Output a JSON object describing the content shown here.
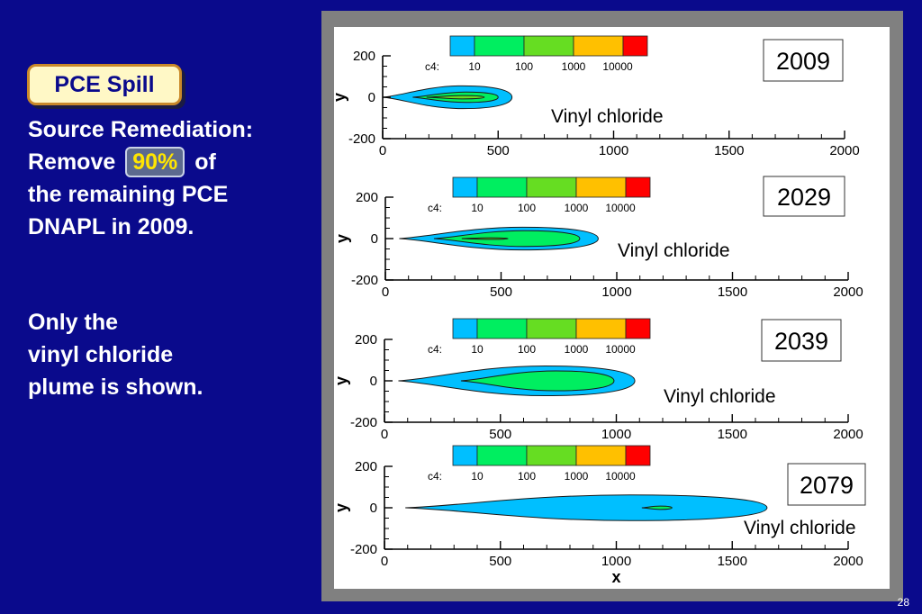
{
  "slide": {
    "badge_title": "PCE Spill",
    "remediation_line1": "Source Remediation:",
    "remediation_remove": "Remove",
    "remediation_percent": "90%",
    "remediation_of": "of",
    "remediation_line3": "the remaining PCE",
    "remediation_line4": "DNAPL in 2009.",
    "note_line1": "Only the",
    "note_line2": "vinyl chloride",
    "note_line3": "plume is shown.",
    "page_number": "28"
  },
  "legend": {
    "label": "c4:",
    "levels": [
      "10",
      "100",
      "1000",
      "10000"
    ],
    "colors": [
      "#00bfff",
      "#00ee60",
      "#66dd22",
      "#ffc000",
      "#ff0000"
    ]
  },
  "chart_data": [
    {
      "type": "contour",
      "year": "2009",
      "species": "Vinyl chloride",
      "xlabel": "",
      "ylabel": "y",
      "xlim": [
        0,
        2000
      ],
      "ylim": [
        -200,
        200
      ],
      "x_ticks": [
        "0",
        "500",
        "1000",
        "1500",
        "2000"
      ],
      "y_ticks": [
        "200",
        "0",
        "-200"
      ],
      "contours": [
        {
          "level": "10",
          "x_start": 0,
          "x_end": 560,
          "half_width": 55
        },
        {
          "level": "100",
          "x_start": 130,
          "x_end": 500,
          "half_width": 25
        },
        {
          "level": "1000",
          "x_start": 190,
          "x_end": 440,
          "half_width": 8
        }
      ]
    },
    {
      "type": "contour",
      "year": "2029",
      "species": "Vinyl chloride",
      "xlabel": "",
      "ylabel": "y",
      "xlim": [
        0,
        2000
      ],
      "ylim": [
        -200,
        200
      ],
      "x_ticks": [
        "0",
        "500",
        "1000",
        "1500",
        "2000"
      ],
      "y_ticks": [
        "200",
        "0",
        "-200"
      ],
      "contours": [
        {
          "level": "10",
          "x_start": 60,
          "x_end": 920,
          "half_width": 55
        },
        {
          "level": "100",
          "x_start": 210,
          "x_end": 840,
          "half_width": 38
        },
        {
          "level": "1000",
          "x_start": 330,
          "x_end": 530,
          "half_width": 4
        }
      ]
    },
    {
      "type": "contour",
      "year": "2039",
      "species": "Vinyl chloride",
      "xlabel": "",
      "ylabel": "y",
      "xlim": [
        0,
        2000
      ],
      "ylim": [
        -200,
        200
      ],
      "x_ticks": [
        "0",
        "500",
        "1000",
        "1500",
        "2000"
      ],
      "y_ticks": [
        "200",
        "0",
        "-200"
      ],
      "contours": [
        {
          "level": "10",
          "x_start": 60,
          "x_end": 1080,
          "half_width": 72
        },
        {
          "level": "100",
          "x_start": 330,
          "x_end": 990,
          "half_width": 48
        }
      ]
    },
    {
      "type": "contour",
      "year": "2079",
      "species": "Vinyl chloride",
      "xlabel": "x",
      "ylabel": "y",
      "xlim": [
        0,
        2000
      ],
      "ylim": [
        -200,
        200
      ],
      "x_ticks": [
        "0",
        "500",
        "1000",
        "1500",
        "2000"
      ],
      "y_ticks": [
        "200",
        "0",
        "-200"
      ],
      "contours": [
        {
          "level": "10",
          "x_start": 90,
          "x_end": 1650,
          "half_width": 62
        },
        {
          "level": "100",
          "x_start": 1110,
          "x_end": 1240,
          "half_width": 8
        }
      ]
    }
  ]
}
